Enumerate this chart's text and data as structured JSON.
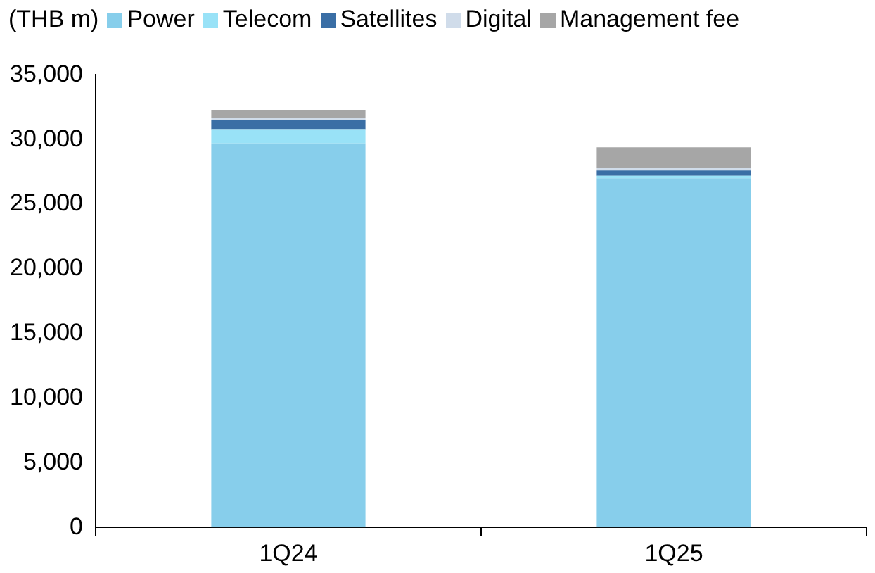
{
  "chart_data": {
    "type": "bar",
    "stacked": true,
    "ylabel": "(THB m)",
    "categories": [
      "1Q24",
      "1Q25"
    ],
    "series": [
      {
        "name": "Power",
        "color": "#87ceeb",
        "values": [
          29700,
          27000
        ]
      },
      {
        "name": "Telecom",
        "color": "#99e2f7",
        "values": [
          1100,
          200
        ]
      },
      {
        "name": "Satellites",
        "color": "#3a6ea5",
        "values": [
          700,
          400
        ]
      },
      {
        "name": "Digital",
        "color": "#d0dcea",
        "values": [
          200,
          200
        ]
      },
      {
        "name": "Management fee",
        "color": "#a6a6a6",
        "values": [
          600,
          1600
        ]
      }
    ],
    "ylim": [
      0,
      35000
    ],
    "yticks": [
      0,
      {
        "value": 5000,
        "label": "5,000"
      },
      {
        "value": 10000,
        "label": "10,000"
      },
      {
        "value": 15000,
        "label": "15,000"
      },
      {
        "value": 20000,
        "label": "20,000"
      },
      {
        "value": 25000,
        "label": "25,000"
      },
      {
        "value": 30000,
        "label": "30,000"
      },
      {
        "value": 35000,
        "label": "35,000"
      }
    ],
    "grid": false,
    "legend": "top"
  }
}
